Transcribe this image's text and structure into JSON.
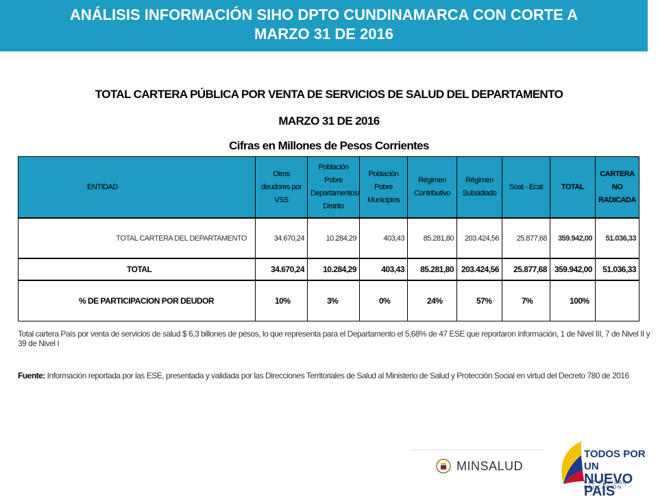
{
  "header": {
    "line1": "ANÁLISIS INFORMACIÓN SIHO DPTO CUNDINAMARCA CON CORTE A",
    "line2": "MARZO 31 DE 2016"
  },
  "table_titles": {
    "title": "TOTAL CARTERA PÚBLICA POR VENTA DE SERVICIOS DE SALUD DEL DEPARTAMENTO",
    "date": "MARZO 31 DE 2016",
    "units": "Cifras en Millones de Pesos Corrientes"
  },
  "table": {
    "headers": [
      "ENTIDAD",
      "Otros deudores por VSS",
      "Población Pobre Departamentos/ Distrito",
      "Población Pobre Municipios",
      "Régimen Contributivo",
      "Régimen Subsidiado",
      "Soat - Ecat",
      "TOTAL",
      "CARTERA NO RADICADA"
    ],
    "rows": [
      {
        "name": "TOTAL CARTERA DEL DEPARTAMENTO",
        "values": [
          "34.670,24",
          "10.284,29",
          "403,43",
          "85.281,80",
          "203.424,56",
          "25.877,68",
          "359.942,00",
          "51.036,33"
        ]
      },
      {
        "name": "TOTAL",
        "values": [
          "34.670,24",
          "10.284,29",
          "403,43",
          "85.281,80",
          "203.424,56",
          "25.877,68",
          "359.942,00",
          "51.036,33"
        ]
      },
      {
        "name": "% DE PARTICIPACION POR DEUDOR",
        "values": [
          "10%",
          "3%",
          "0%",
          "24%",
          "57%",
          "7%",
          "100%",
          ""
        ]
      }
    ]
  },
  "note": "Total cartera País por venta de servicios de salud $ 6,3 billones de pesos, lo que representa para el Departamento el 5,68% de 47 ESE que reportaron información, 1 de Nivel III, 7 de Nivel II y 39 de Nivel I",
  "source": {
    "label": "Fuente:",
    "text": " Información reportada por las ESE, presentada y validada por las Direcciones Territoriales de Salud al Ministerio de Salud y Protección Social en virtud del Decreto 780 de 2016"
  },
  "logos": {
    "msalud": "MINSALUD",
    "todos_line1": "TODOS POR UN",
    "todos_line2": "NUEVO PAÍS",
    "todos_sub": "PAZ EQUIDAD EDUCACIÓN"
  },
  "colors": {
    "header_bg": "#1e9cc3",
    "table_header_bg": "#1e9cc3"
  }
}
